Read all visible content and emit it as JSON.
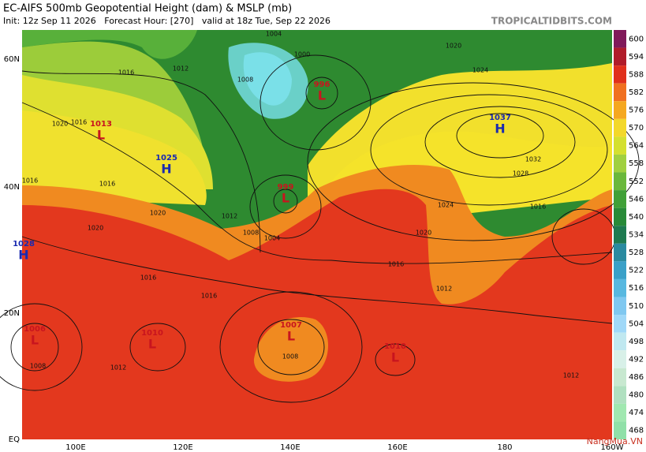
{
  "header": {
    "title": "EC-AIFS 500mb Geopotential Height (dam) & MSLP (mb)",
    "subtitle": "Init: 12z Sep 11 2026   Forecast Hour: [270]   valid at 18z Tue, Sep 22 2026",
    "brand": "TROPICALTIDBITS.COM"
  },
  "axes": {
    "lat_labels": [
      "60N",
      "40N",
      "20N",
      "EQ"
    ],
    "lon_labels": [
      "100E",
      "120E",
      "140E",
      "160E",
      "180",
      "160W"
    ]
  },
  "colorbar": {
    "levels": [
      600,
      594,
      588,
      582,
      576,
      570,
      564,
      558,
      552,
      546,
      540,
      534,
      528,
      522,
      516,
      510,
      504,
      498,
      492,
      486,
      480,
      474,
      468
    ]
  },
  "centers": [
    {
      "type": "L",
      "value": "1013"
    },
    {
      "type": "H",
      "value": "1025"
    },
    {
      "type": "H",
      "value": "1028"
    },
    {
      "type": "L",
      "value": "996"
    },
    {
      "type": "L",
      "value": "999"
    },
    {
      "type": "H",
      "value": "1037"
    },
    {
      "type": "L",
      "value": "1006"
    },
    {
      "type": "L",
      "value": "1010"
    },
    {
      "type": "L",
      "value": "1007"
    },
    {
      "type": "L",
      "value": "1010"
    }
  ],
  "isobar_labels": [
    "1004",
    "1000",
    "1008",
    "1012",
    "1016",
    "1020",
    "1016",
    "1016",
    "1020",
    "1016",
    "1020",
    "1012",
    "1004",
    "1008",
    "1028",
    "1032",
    "1024",
    "1020",
    "1016",
    "1016",
    "1012",
    "1008",
    "1008",
    "1012",
    "1012",
    "1020",
    "1024",
    "1016",
    "1016"
  ],
  "watermark": "NangMua.VN"
}
